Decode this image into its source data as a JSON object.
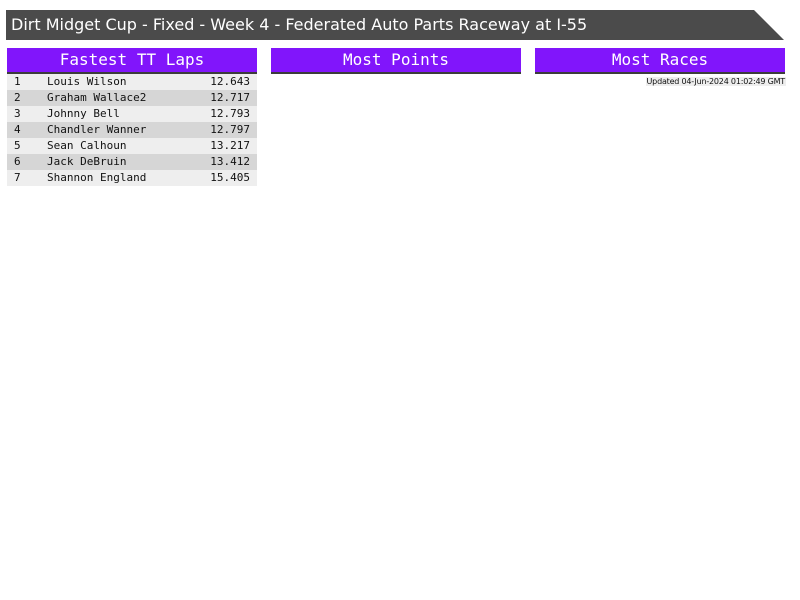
{
  "title": "Dirt Midget Cup - Fixed - Week 4 - Federated Auto Parts Raceway at I-55",
  "panels": {
    "fastest": "Fastest TT Laps",
    "points": "Most Points",
    "races": "Most Races"
  },
  "fastest_laps": [
    {
      "pos": "1",
      "name": "Louis Wilson",
      "time": "12.643"
    },
    {
      "pos": "2",
      "name": "Graham Wallace2",
      "time": "12.717"
    },
    {
      "pos": "3",
      "name": "Johnny Bell",
      "time": "12.793"
    },
    {
      "pos": "4",
      "name": "Chandler Wanner",
      "time": "12.797"
    },
    {
      "pos": "5",
      "name": "Sean Calhoun",
      "time": "13.217"
    },
    {
      "pos": "6",
      "name": "Jack DeBruin",
      "time": "13.412"
    },
    {
      "pos": "7",
      "name": "Shannon England",
      "time": "15.405"
    }
  ],
  "updated": "Updated 04-Jun-2024 01:02:49 GMT",
  "colors": {
    "accent": "#8115fb",
    "title_bg": "#4b4b4b"
  }
}
